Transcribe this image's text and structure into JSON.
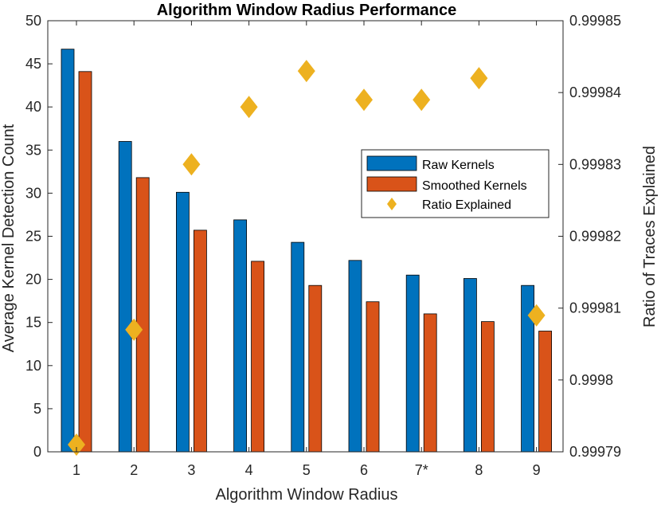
{
  "chart_data": {
    "type": "bar",
    "title": "Algorithm Window Radius Performance",
    "xlabel": "Algorithm Window Radius",
    "ylabel": "Average Kernel Detection Count",
    "y2label": "Ratio of Traces Explained",
    "categories": [
      "1",
      "2",
      "3",
      "4",
      "5",
      "6",
      "7*",
      "8",
      "9"
    ],
    "ylim": [
      0,
      50
    ],
    "yticks": [
      0,
      5,
      10,
      15,
      20,
      25,
      30,
      35,
      40,
      45,
      50
    ],
    "y2lim": [
      0.99979,
      0.99985
    ],
    "y2ticks": [
      0.99979,
      0.9998,
      0.99981,
      0.99982,
      0.99983,
      0.99984,
      0.99985
    ],
    "y2ticklabels": [
      "0.99979",
      "0.9998",
      "0.99981",
      "0.99982",
      "0.99983",
      "0.99984",
      "0.99985"
    ],
    "series": [
      {
        "name": "Raw Kernels",
        "kind": "bar",
        "axis": "left",
        "color": "#0072BD",
        "values": [
          46.7,
          36.0,
          30.1,
          26.9,
          24.3,
          22.2,
          20.5,
          20.1,
          19.3
        ]
      },
      {
        "name": "Smoothed Kernels",
        "kind": "bar",
        "axis": "left",
        "color": "#D95319",
        "values": [
          44.1,
          31.8,
          25.7,
          22.1,
          19.3,
          17.4,
          16.0,
          15.1,
          14.0
        ]
      },
      {
        "name": "Ratio Explained",
        "kind": "marker",
        "marker": "diamond",
        "axis": "right",
        "color": "#EDB120",
        "values": [
          0.999791,
          0.999807,
          0.99983,
          0.999838,
          0.999843,
          0.999839,
          0.999839,
          0.999842,
          0.999809
        ]
      }
    ],
    "legend": "center-right",
    "grid": false
  }
}
